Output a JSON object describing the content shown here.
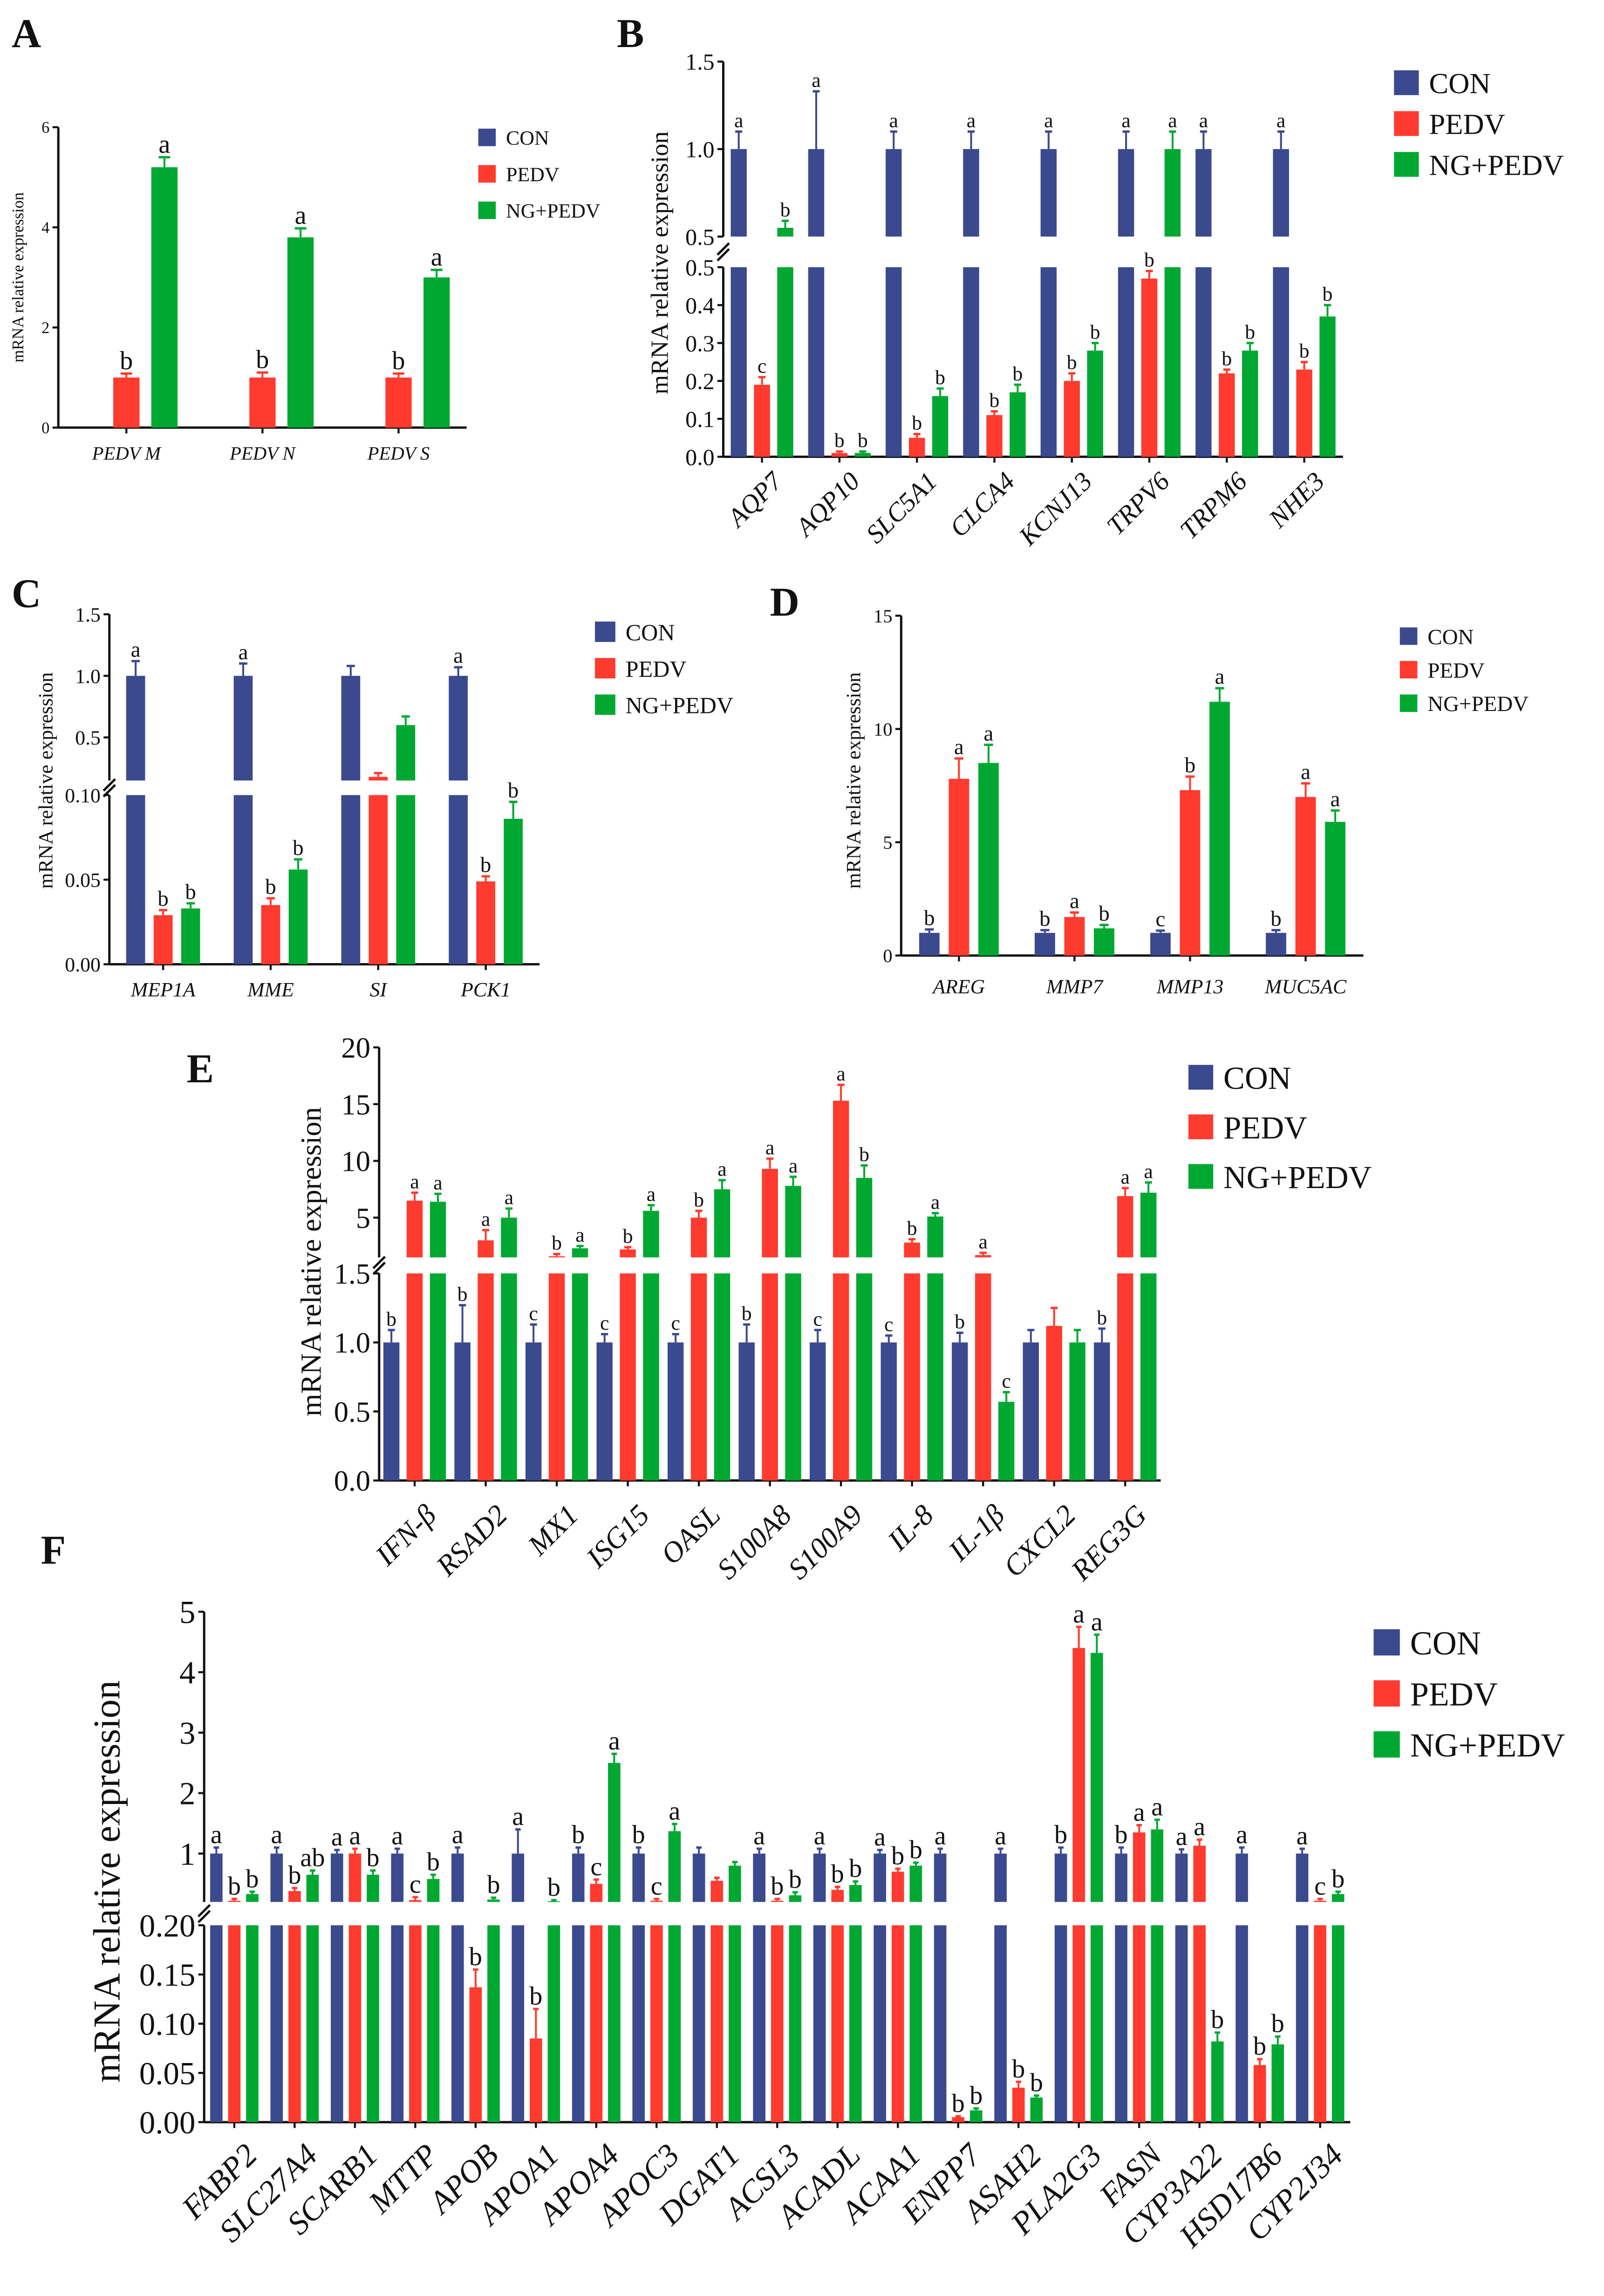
{
  "colors": {
    "CON": "#3b4a8e",
    "PEDV": "#ff3a2e",
    "NG+PEDV": "#00a832",
    "axis": "#111111"
  },
  "chart_data": [
    {
      "id": "A",
      "panel_label": "A",
      "type": "bar",
      "ylabel": "mRNA relative expression",
      "categories": [
        "PEDV M",
        "PEDV N",
        "PEDV S"
      ],
      "segments": [
        {
          "range": [
            0,
            6
          ],
          "ticks": [
            0,
            2,
            4,
            6
          ],
          "tick_labels": [
            "0",
            "2",
            "4",
            "6"
          ]
        }
      ],
      "series": [
        {
          "name": "CON",
          "values": [
            null,
            null,
            null
          ],
          "err": [
            0,
            0,
            0
          ],
          "letters": [
            "",
            "",
            ""
          ]
        },
        {
          "name": "PEDV",
          "values": [
            1.0,
            1.0,
            1.0
          ],
          "err": [
            0.08,
            0.1,
            0.08
          ],
          "letters": [
            "b",
            "b",
            "b"
          ]
        },
        {
          "name": "NG+PEDV",
          "values": [
            5.2,
            3.8,
            3.0
          ],
          "err": [
            0.2,
            0.18,
            0.15
          ],
          "letters": [
            "a",
            "a",
            "a"
          ]
        }
      ]
    },
    {
      "id": "B",
      "panel_label": "B",
      "type": "bar",
      "ylabel": "mRNA relative expression",
      "categories": [
        "AQP7",
        "AQP10",
        "SLC5A1",
        "CLCA4",
        "KCNJ13",
        "TRPV6",
        "TRPM6",
        "NHE3"
      ],
      "segments": [
        {
          "range": [
            0,
            0.5
          ],
          "ticks": [
            0,
            0.1,
            0.2,
            0.3,
            0.4,
            0.5
          ],
          "tick_labels": [
            "0.0",
            "0.1",
            "0.2",
            "0.3",
            "0.4",
            "0.5"
          ]
        },
        {
          "range": [
            0.5,
            1.5
          ],
          "ticks": [
            0.5,
            1.0,
            1.5
          ],
          "tick_labels": [
            "0.5",
            "1.0",
            "1.5"
          ]
        }
      ],
      "series": [
        {
          "name": "CON",
          "values": [
            1,
            1,
            1,
            1,
            1,
            1,
            1,
            1
          ],
          "err": [
            0.1,
            0.33,
            0.1,
            0.1,
            0.1,
            0.1,
            0.1,
            0.1
          ],
          "letters": [
            "a",
            "a",
            "a",
            "a",
            "a",
            "a",
            "a",
            "a"
          ]
        },
        {
          "name": "PEDV",
          "values": [
            0.19,
            0.01,
            0.05,
            0.11,
            0.2,
            0.47,
            0.22,
            0.23
          ],
          "err": [
            0.02,
            0.004,
            0.01,
            0.01,
            0.02,
            0.02,
            0.01,
            0.02
          ],
          "letters": [
            "c",
            "b",
            "b",
            "b",
            "b",
            "b",
            "b",
            "b"
          ]
        },
        {
          "name": "NG+PEDV",
          "values": [
            0.55,
            0.01,
            0.16,
            0.17,
            0.28,
            1.0,
            0.28,
            0.37
          ],
          "err": [
            0.04,
            0.004,
            0.02,
            0.02,
            0.02,
            0.1,
            0.02,
            0.03
          ],
          "letters": [
            "b",
            "b",
            "b",
            "b",
            "b",
            "a",
            "b",
            "b"
          ]
        }
      ]
    },
    {
      "id": "C",
      "panel_label": "C",
      "type": "bar",
      "ylabel": "mRNA relative expression",
      "categories": [
        "MEP1A",
        "MME",
        "SI",
        "PCK1"
      ],
      "segments": [
        {
          "range": [
            0,
            0.1
          ],
          "ticks": [
            0,
            0.05,
            0.1
          ],
          "tick_labels": [
            "0.00",
            "0.05",
            "0.10"
          ]
        },
        {
          "range": [
            0.15,
            1.5
          ],
          "ticks": [
            0.5,
            1.0,
            1.5
          ],
          "tick_labels": [
            "0.5",
            "1.0",
            "1.5"
          ]
        }
      ],
      "series": [
        {
          "name": "CON",
          "values": [
            1,
            1,
            1,
            1
          ],
          "err": [
            0.12,
            0.1,
            0.08,
            0.07
          ],
          "letters": [
            "a",
            "a",
            "",
            "a"
          ]
        },
        {
          "name": "PEDV",
          "values": [
            0.029,
            0.035,
            0.18,
            0.049
          ],
          "err": [
            0.003,
            0.004,
            0.03,
            0.003
          ],
          "letters": [
            "b",
            "b",
            "",
            "b"
          ]
        },
        {
          "name": "NG+PEDV",
          "values": [
            0.033,
            0.056,
            0.6,
            0.086
          ],
          "err": [
            0.003,
            0.006,
            0.07,
            0.01
          ],
          "letters": [
            "b",
            "b",
            "",
            "b"
          ]
        }
      ]
    },
    {
      "id": "D",
      "panel_label": "D",
      "type": "bar",
      "ylabel": "mRNA relative expression",
      "categories": [
        "AREG",
        "MMP7",
        "MMP13",
        "MUC5AC"
      ],
      "segments": [
        {
          "range": [
            0,
            15
          ],
          "ticks": [
            0,
            5,
            10,
            15
          ],
          "tick_labels": [
            "0",
            "5",
            "10",
            "15"
          ]
        }
      ],
      "series": [
        {
          "name": "CON",
          "values": [
            1,
            1,
            1,
            1
          ],
          "err": [
            0.15,
            0.12,
            0.1,
            0.12
          ],
          "letters": [
            "b",
            "b",
            "c",
            "b"
          ]
        },
        {
          "name": "PEDV",
          "values": [
            7.8,
            1.7,
            7.3,
            7.0
          ],
          "err": [
            0.9,
            0.2,
            0.6,
            0.6
          ],
          "letters": [
            "a",
            "a",
            "b",
            "a"
          ]
        },
        {
          "name": "NG+PEDV",
          "values": [
            8.5,
            1.2,
            11.2,
            5.9
          ],
          "err": [
            0.8,
            0.15,
            0.6,
            0.5
          ],
          "letters": [
            "a",
            "b",
            "a",
            "a"
          ]
        }
      ]
    },
    {
      "id": "E",
      "panel_label": "E",
      "type": "bar",
      "ylabel": "mRNA relative expression",
      "categories": [
        "IFN-β",
        "RSAD2",
        "MX1",
        "ISG15",
        "OASL",
        "S100A8",
        "S100A9",
        "IL-8",
        "IL-1β",
        "CXCL2",
        "REG3G"
      ],
      "segments": [
        {
          "range": [
            0,
            1.5
          ],
          "ticks": [
            0,
            0.5,
            1.0,
            1.5
          ],
          "tick_labels": [
            "0.0",
            "0.5",
            "1.0",
            "1.5"
          ]
        },
        {
          "range": [
            1.5,
            20
          ],
          "ticks": [
            5,
            10,
            15,
            20
          ],
          "tick_labels": [
            "5",
            "10",
            "15",
            "20"
          ]
        }
      ],
      "series": [
        {
          "name": "CON",
          "values": [
            1,
            1,
            1,
            1,
            1,
            1,
            1,
            1,
            1,
            1,
            1
          ],
          "err": [
            0.09,
            0.27,
            0.13,
            0.06,
            0.06,
            0.13,
            0.09,
            0.05,
            0.07,
            0.09,
            0.1
          ],
          "letters": [
            "b",
            "b",
            "c",
            "c",
            "c",
            "b",
            "c",
            "c",
            "b",
            "",
            "b"
          ]
        },
        {
          "name": "PEDV",
          "values": [
            6.5,
            3.0,
            1.6,
            2.2,
            5.0,
            9.3,
            15.3,
            2.8,
            1.7,
            1.12,
            6.9
          ],
          "err": [
            0.7,
            0.9,
            0.2,
            0.2,
            0.6,
            0.9,
            1.4,
            0.3,
            0.2,
            0.13,
            0.7
          ],
          "letters": [
            "a",
            "a",
            "b",
            "b",
            "b",
            "a",
            "a",
            "b",
            "a",
            "",
            "a"
          ]
        },
        {
          "name": "NG+PEDV",
          "values": [
            6.4,
            5.0,
            2.3,
            5.6,
            7.5,
            7.8,
            8.5,
            5.1,
            0.57,
            1.0,
            7.2
          ],
          "err": [
            0.7,
            0.8,
            0.2,
            0.5,
            0.8,
            0.8,
            1.1,
            0.3,
            0.07,
            0.09,
            0.9
          ],
          "letters": [
            "a",
            "a",
            "a",
            "a",
            "a",
            "a",
            "b",
            "a",
            "c",
            "",
            "a"
          ]
        }
      ]
    },
    {
      "id": "F",
      "panel_label": "F",
      "type": "bar",
      "ylabel": "mRNA relative expression",
      "categories": [
        "FABP2",
        "SLC27A4",
        "SCARB1",
        "MTTP",
        "APOB",
        "APOA1",
        "APOA4",
        "APOC3",
        "DGAT1",
        "ACSL3",
        "ACADL",
        "ACAA1",
        "ENPP7",
        "ASAH2",
        "PLA2G3",
        "FASN",
        "CYP3A22",
        "HSD17B6",
        "CYP2J34"
      ],
      "segments": [
        {
          "range": [
            0,
            0.2
          ],
          "ticks": [
            0,
            0.05,
            0.1,
            0.15,
            0.2
          ],
          "tick_labels": [
            "0.00",
            "0.05",
            "0.10",
            "0.15",
            "0.20"
          ]
        },
        {
          "range": [
            0.2,
            5
          ],
          "ticks": [
            1,
            2,
            3,
            4,
            5
          ],
          "tick_labels": [
            "1",
            "2",
            "3",
            "4",
            "5"
          ]
        }
      ],
      "series": [
        {
          "name": "CON",
          "values": [
            1,
            1,
            1,
            1,
            1,
            1,
            1,
            1,
            1,
            1,
            1,
            1,
            1,
            1,
            1,
            1,
            1,
            1,
            1
          ],
          "err": [
            0.1,
            0.1,
            0.06,
            0.08,
            0.1,
            0.4,
            0.1,
            0.1,
            0.1,
            0.08,
            0.08,
            0.06,
            0.08,
            0.08,
            0.1,
            0.1,
            0.07,
            0.1,
            0.08
          ],
          "letters": [
            "a",
            "a",
            "a",
            "a",
            "a",
            "a",
            "b",
            "b",
            "",
            "a",
            "a",
            "a",
            "a",
            "a",
            "b",
            "b",
            "a",
            "a",
            "a"
          ]
        },
        {
          "name": "PEDV",
          "values": [
            0.22,
            0.38,
            1.0,
            0.23,
            0.137,
            0.085,
            0.5,
            0.22,
            0.55,
            0.22,
            0.4,
            0.7,
            0.005,
            0.035,
            4.4,
            1.35,
            1.13,
            0.058,
            0.22
          ],
          "err": [
            0.03,
            0.05,
            0.08,
            0.05,
            0.018,
            0.03,
            0.07,
            0.03,
            0.05,
            0.03,
            0.05,
            0.05,
            0.001,
            0.006,
            0.35,
            0.12,
            0.1,
            0.006,
            0.03
          ],
          "letters": [
            "b",
            "b",
            "a",
            "c",
            "b",
            "b",
            "c",
            "c",
            "",
            "b",
            "b",
            "b",
            "b",
            "b",
            "a",
            "a",
            "a",
            "b",
            "c"
          ]
        },
        {
          "name": "NG+PEDV",
          "values": [
            0.33,
            0.65,
            0.65,
            0.58,
            0.24,
            0.21,
            2.5,
            1.37,
            0.8,
            0.31,
            0.48,
            0.8,
            0.012,
            0.025,
            4.32,
            1.4,
            0.082,
            0.079,
            0.33
          ],
          "err": [
            0.04,
            0.07,
            0.07,
            0.07,
            0.03,
            0.02,
            0.15,
            0.12,
            0.06,
            0.05,
            0.06,
            0.05,
            0.002,
            0.002,
            0.3,
            0.16,
            0.009,
            0.008,
            0.04
          ],
          "letters": [
            "b",
            "ab",
            "b",
            "b",
            "b",
            "b",
            "a",
            "a",
            "",
            "b",
            "b",
            "b",
            "b",
            "b",
            "a",
            "a",
            "b",
            "b",
            "b"
          ]
        }
      ]
    }
  ]
}
